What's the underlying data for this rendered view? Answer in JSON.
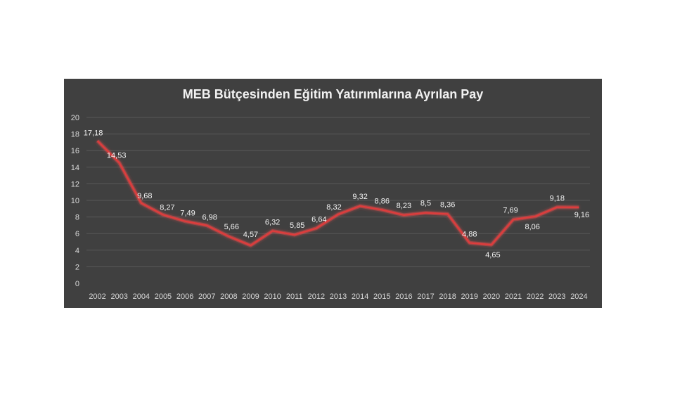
{
  "chart_data": {
    "type": "line",
    "title": "MEB Bütçesinden Eğitim Yatırımlarına Ayrılan Pay",
    "categories": [
      "2002",
      "2003",
      "2004",
      "2005",
      "2006",
      "2007",
      "2008",
      "2009",
      "2010",
      "2011",
      "2012",
      "2013",
      "2014",
      "2015",
      "2016",
      "2017",
      "2018",
      "2019",
      "2020",
      "2021",
      "2022",
      "2023",
      "2024"
    ],
    "series": [
      {
        "values": [
          17.18,
          14.53,
          9.68,
          8.27,
          7.49,
          6.98,
          5.66,
          4.57,
          6.32,
          5.85,
          6.64,
          8.32,
          9.32,
          8.86,
          8.23,
          8.5,
          8.36,
          4.88,
          4.65,
          7.69,
          8.06,
          9.18,
          9.16
        ],
        "labels": [
          "17,18",
          "14,53",
          "9,68",
          "8,27",
          "7,49",
          "6,98",
          "5,66",
          "4,57",
          "6,32",
          "5,85",
          "6,64",
          "8,32",
          "9,32",
          "8,86",
          "8,23",
          "8,5",
          "8,36",
          "4,88",
          "4,65",
          "7,69",
          "8,06",
          "9,18",
          "9,16"
        ]
      }
    ],
    "ylim": [
      0,
      20
    ],
    "yticks": [
      "0",
      "2",
      "4",
      "6",
      "8",
      "10",
      "12",
      "14",
      "16",
      "18",
      "20"
    ],
    "grid": true,
    "colors": {
      "background": "#404040",
      "line": "#e03c3c",
      "glow": "#ff4d4d",
      "text": "#f2f2f2",
      "grid": "#595959"
    }
  }
}
